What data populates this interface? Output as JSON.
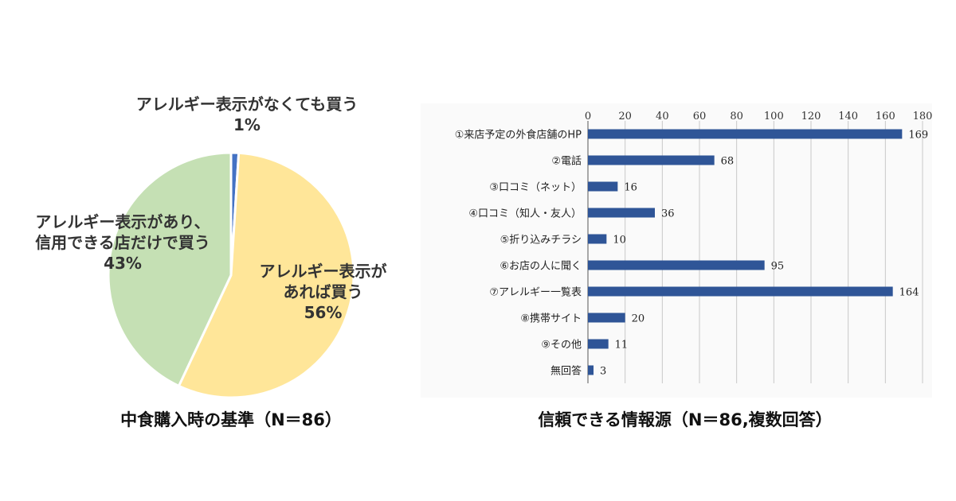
{
  "chart_data": [
    {
      "type": "pie",
      "title": "中食購入時の基準（N＝86）",
      "slices": [
        {
          "label_lines": [
            "アレルギー表示がなくても買う",
            "1%"
          ],
          "value": 1,
          "color": "#4472c4"
        },
        {
          "label_lines": [
            "アレルギー表示が",
            "あれば買う",
            "56%"
          ],
          "value": 56,
          "color": "#ffe699"
        },
        {
          "label_lines": [
            "アレルギー表示があり、",
            "信用できる店だけで買う",
            "43%"
          ],
          "value": 43,
          "color": "#c5e0b4"
        }
      ]
    },
    {
      "type": "bar",
      "orientation": "horizontal",
      "title": "信頼できる情報源（N＝86,複数回答）",
      "xlim": [
        0,
        180
      ],
      "xticks": [
        0,
        20,
        40,
        60,
        80,
        100,
        120,
        140,
        160,
        180
      ],
      "categories": [
        "①来店予定の外食店舗のHP",
        "②電話",
        "③口コミ（ネット）",
        "④口コミ（知人・友人）",
        "⑤折り込みチラシ",
        "⑥お店の人に聞く",
        "⑦アレルギー一覧表",
        "⑧携帯サイト",
        "⑨その他",
        "無回答"
      ],
      "values": [
        169,
        68,
        16,
        36,
        10,
        95,
        164,
        20,
        11,
        3
      ],
      "bar_color": "#2f5597"
    }
  ]
}
